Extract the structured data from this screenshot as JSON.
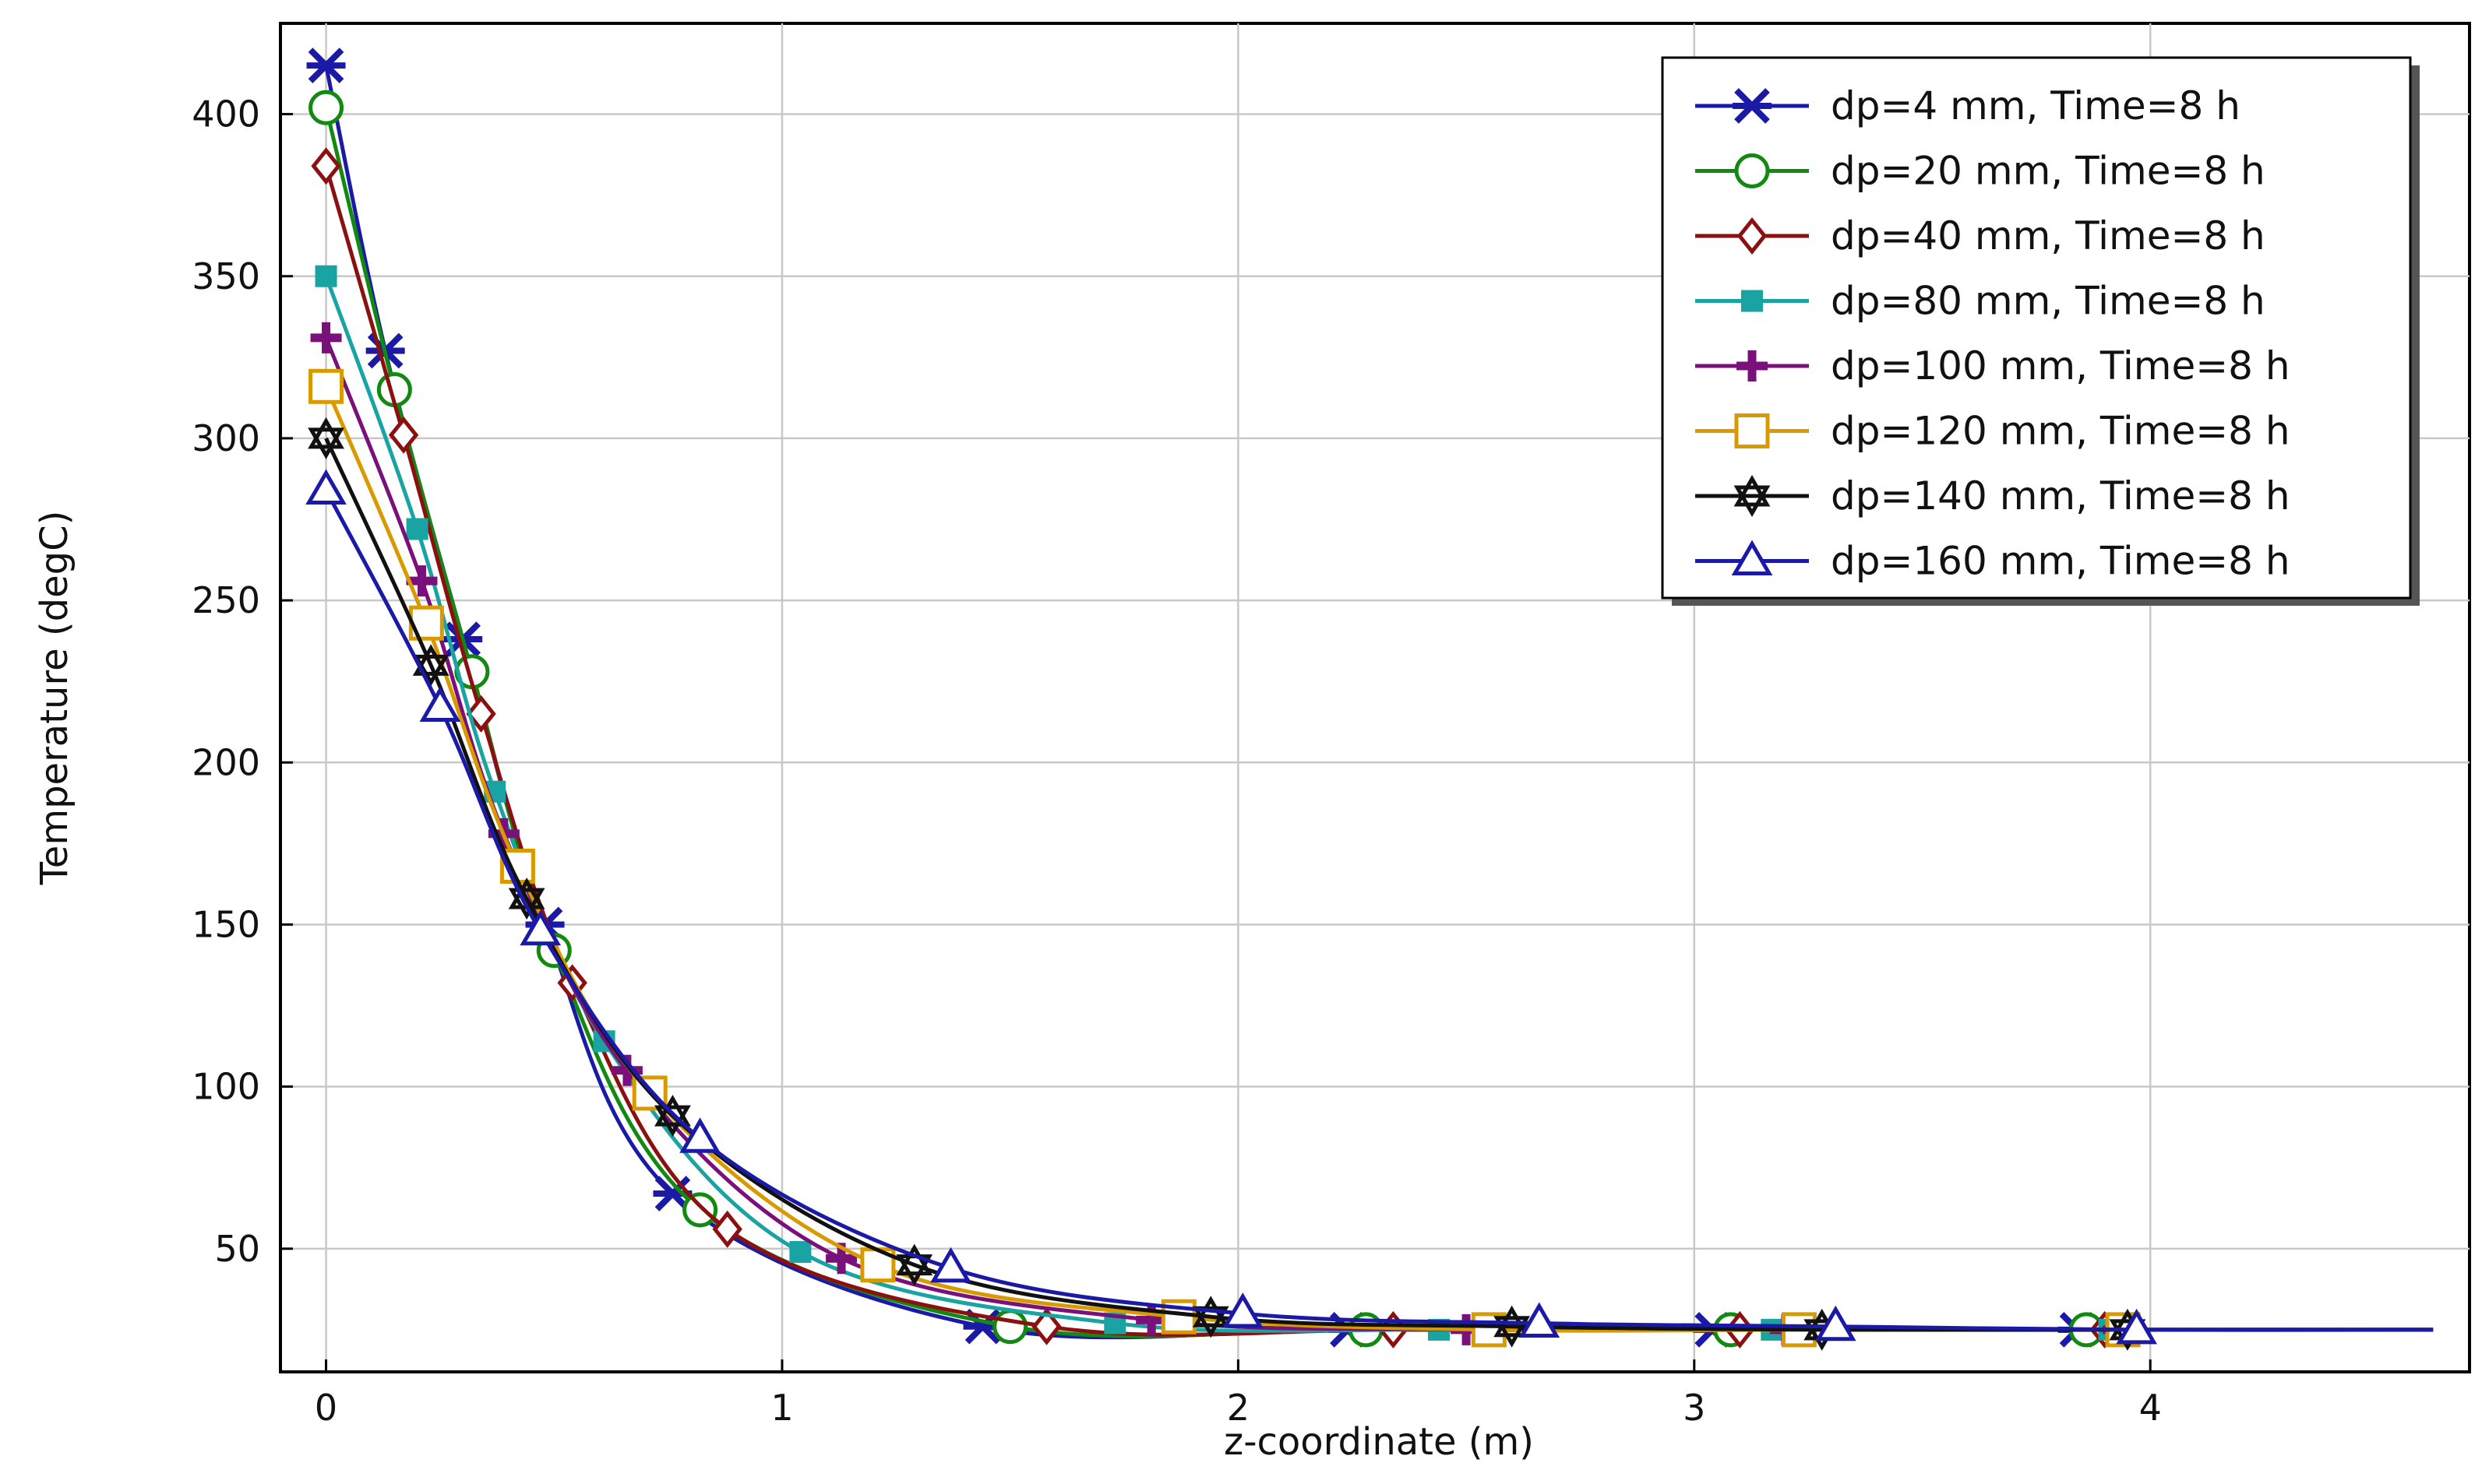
{
  "chart_data": {
    "type": "line",
    "title": "",
    "xlabel": "z-coordinate (m)",
    "ylabel": "Temperature (degC)",
    "xlim": [
      -0.1,
      4.7
    ],
    "ylim": [
      12,
      428
    ],
    "xticks": [
      0,
      1,
      2,
      3,
      4
    ],
    "yticks": [
      50,
      100,
      150,
      200,
      250,
      300,
      350,
      400
    ],
    "grid": true,
    "legend_position": "top-right",
    "series": [
      {
        "name": "dp=4 mm, Time=8 h",
        "color": "#1a1aa6",
        "marker": "x-star",
        "x": [
          0,
          0.13,
          0.3,
          0.48,
          0.76,
          1.44,
          2.24,
          3.04,
          3.84,
          4.62
        ],
        "y": [
          415,
          327,
          238,
          150,
          67,
          26,
          25,
          25,
          25,
          25
        ]
      },
      {
        "name": "dp=20 mm, Time=8 h",
        "color": "#128a12",
        "marker": "circle",
        "x": [
          0,
          0.15,
          0.32,
          0.5,
          0.82,
          1.5,
          2.28,
          3.08,
          3.86,
          4.62
        ],
        "y": [
          402,
          315,
          228,
          142,
          62,
          26,
          25,
          25,
          25,
          25
        ]
      },
      {
        "name": "dp=40 mm, Time=8 h",
        "color": "#8b1010",
        "marker": "diamond",
        "x": [
          0,
          0.17,
          0.34,
          0.54,
          0.88,
          1.58,
          2.34,
          3.1,
          3.9,
          4.62
        ],
        "y": [
          384,
          301,
          215,
          132,
          56,
          26,
          25,
          25,
          25,
          25
        ]
      },
      {
        "name": "dp=80 mm, Time=8 h",
        "color": "#1aa3a3",
        "marker": "square-filled",
        "x": [
          0,
          0.2,
          0.37,
          0.61,
          1.04,
          1.73,
          2.44,
          3.17,
          3.91,
          4.62
        ],
        "y": [
          350,
          272,
          191,
          114,
          49,
          27,
          25,
          25,
          25,
          25
        ]
      },
      {
        "name": "dp=100 mm, Time=8 h",
        "color": "#7a107a",
        "marker": "plus",
        "x": [
          0,
          0.21,
          0.39,
          0.66,
          1.13,
          1.81,
          2.5,
          3.2,
          3.93,
          4.62
        ],
        "y": [
          331,
          256,
          178,
          105,
          47,
          28,
          25,
          25,
          25,
          25
        ]
      },
      {
        "name": "dp=120 mm, Time=8 h",
        "color": "#d99a00",
        "marker": "square",
        "x": [
          0,
          0.22,
          0.42,
          0.71,
          1.21,
          1.87,
          2.55,
          3.23,
          3.94,
          4.62
        ],
        "y": [
          316,
          243,
          168,
          98,
          45,
          29,
          25,
          25,
          25,
          25
        ]
      },
      {
        "name": "dp=140 mm, Time=8 h",
        "color": "#111111",
        "marker": "hexagram",
        "x": [
          0,
          0.23,
          0.44,
          0.76,
          1.29,
          1.94,
          2.6,
          3.28,
          3.95,
          4.62
        ],
        "y": [
          300,
          230,
          158,
          91,
          45,
          29,
          26,
          25,
          25,
          25
        ]
      },
      {
        "name": "dp=160 mm, Time=8 h",
        "color": "#1a1aa6",
        "marker": "triangle",
        "x": [
          0,
          0.25,
          0.47,
          0.82,
          1.37,
          2.01,
          2.66,
          3.31,
          3.97,
          4.62
        ],
        "y": [
          284,
          217,
          148,
          84,
          44,
          30,
          27,
          26,
          25,
          25
        ]
      }
    ]
  }
}
